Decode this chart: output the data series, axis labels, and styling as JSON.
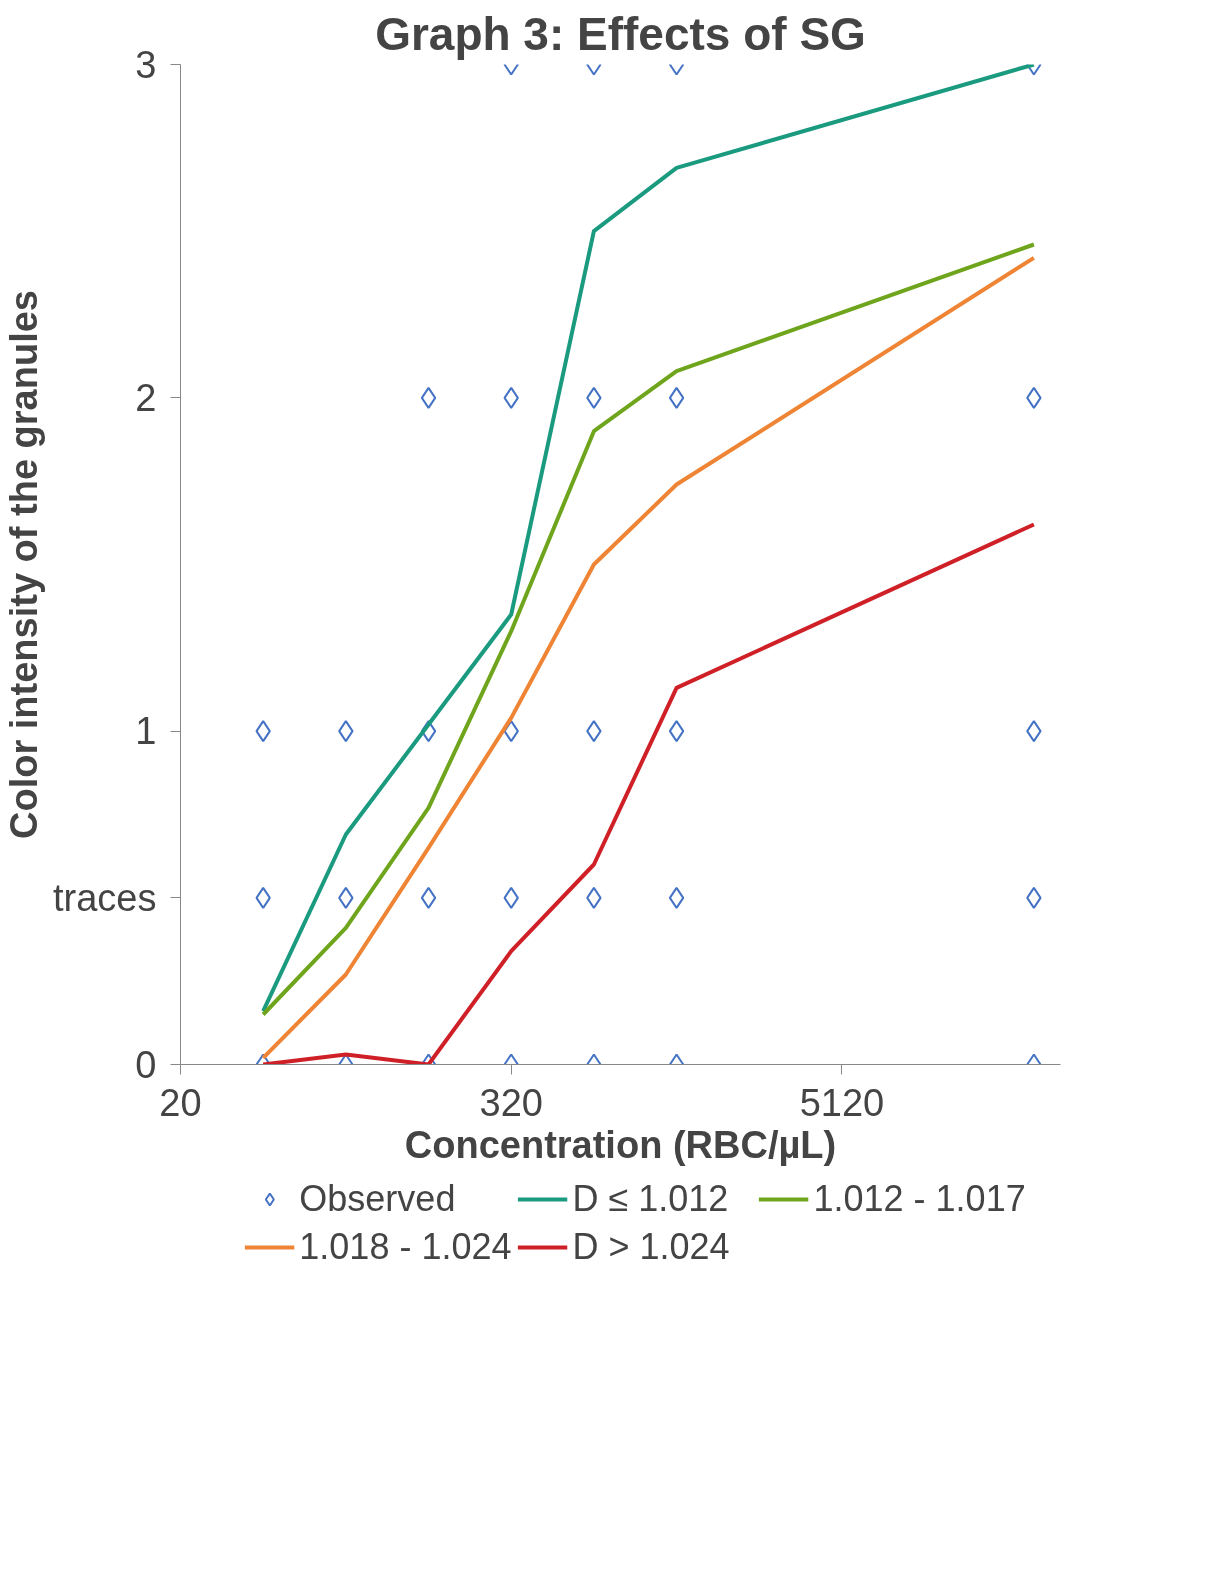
{
  "chart_data": {
    "type": "line",
    "title": "Graph 3: Effects of SG",
    "xlabel": "Concentration (RBC/µL)",
    "ylabel": "Color intensity of the granules",
    "log": "x",
    "xlim": [
      20,
      32000
    ],
    "xticks": [
      20,
      320,
      5120
    ],
    "ylim": [
      0,
      3
    ],
    "yticks": [
      0,
      {
        "value": 0.5,
        "label": "traces"
      },
      1,
      2,
      3
    ],
    "grid": false,
    "legend": "bottom",
    "line_style": "solid",
    "series": [
      {
        "name": "Observed",
        "type": "scatter",
        "marker": "diamond",
        "color": "#4472c4",
        "x": [
          40,
          40,
          40,
          80,
          80,
          80,
          160,
          160,
          160,
          160,
          320,
          320,
          320,
          320,
          320,
          640,
          640,
          640,
          640,
          640,
          1280,
          1280,
          1280,
          1280,
          1280,
          25600,
          25600,
          25600,
          25600,
          25600
        ],
        "values": [
          1,
          0.5,
          0,
          1,
          0.5,
          0,
          2,
          1,
          0.5,
          0,
          3,
          2,
          1,
          0.5,
          0,
          3,
          2,
          1,
          0.5,
          0,
          3,
          2,
          1,
          0.5,
          0,
          3,
          2,
          1,
          0.5,
          0
        ]
      },
      {
        "name": "D ≤ 1.012",
        "marker": "none",
        "color": "#1a9a7f",
        "x": [
          40,
          80,
          160,
          320,
          640,
          1280,
          25600
        ],
        "values": [
          0.16,
          0.69,
          1.02,
          1.35,
          2.5,
          2.69,
          3.0
        ]
      },
      {
        "name": "1.012 - 1.017",
        "marker": "none",
        "color": "#6fa51d",
        "x": [
          40,
          80,
          160,
          320,
          640,
          1280,
          25600
        ],
        "values": [
          0.15,
          0.41,
          0.77,
          1.3,
          1.9,
          2.08,
          2.46
        ]
      },
      {
        "name": "1.018 - 1.024",
        "marker": "none",
        "color": "#ee8434",
        "x": [
          40,
          80,
          160,
          320,
          640,
          1280,
          25600
        ],
        "values": [
          0.02,
          0.27,
          0.65,
          1.04,
          1.5,
          1.74,
          2.42
        ]
      },
      {
        "name": "D > 1.024",
        "marker": "none",
        "color": "#d02027",
        "x": [
          40,
          80,
          160,
          320,
          640,
          1280,
          25600
        ],
        "values": [
          0,
          0.03,
          0,
          0.34,
          0.6,
          1.13,
          1.62
        ]
      }
    ]
  }
}
